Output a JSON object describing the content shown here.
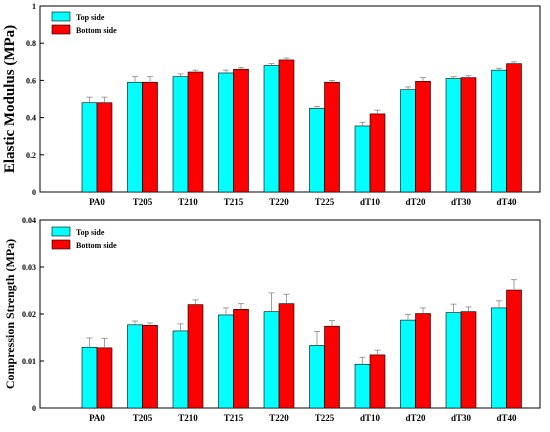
{
  "colors": {
    "top": "#00ffff",
    "bottom": "#ff0000",
    "error": "#888888"
  },
  "chart_data": [
    {
      "type": "bar",
      "ylabel": "Elastic Modulus (MPa)",
      "ylim": [
        0,
        1
      ],
      "yticks": [
        0,
        0.2,
        0.4,
        0.6,
        0.8,
        1
      ],
      "ytick_labels": [
        "0",
        "0.2",
        "0.4",
        "0.6",
        "0.8",
        "1"
      ],
      "categories": [
        "PA0",
        "T205",
        "T210",
        "T215",
        "T220",
        "T225",
        "dT10",
        "dT20",
        "dT30",
        "dT40"
      ],
      "legend_position": "top-left",
      "series": [
        {
          "name": "Top side",
          "values": [
            0.48,
            0.59,
            0.62,
            0.64,
            0.68,
            0.45,
            0.355,
            0.55,
            0.61,
            0.655
          ],
          "errors": [
            0.03,
            0.03,
            0.015,
            0.015,
            0.01,
            0.01,
            0.02,
            0.015,
            0.01,
            0.01
          ]
        },
        {
          "name": "Bottom side",
          "values": [
            0.48,
            0.59,
            0.645,
            0.66,
            0.71,
            0.59,
            0.42,
            0.595,
            0.615,
            0.69
          ],
          "errors": [
            0.03,
            0.03,
            0.01,
            0.01,
            0.01,
            0.01,
            0.02,
            0.02,
            0.01,
            0.01
          ]
        }
      ]
    },
    {
      "type": "bar",
      "ylabel": "Compression Strength (MPa)",
      "ylim": [
        0,
        0.04
      ],
      "yticks": [
        0,
        0.01,
        0.02,
        0.03,
        0.04
      ],
      "ytick_labels": [
        "0",
        "0.01",
        "0.02",
        "0.03",
        "0.04"
      ],
      "categories": [
        "PA0",
        "T205",
        "T210",
        "T215",
        "T220",
        "T225",
        "dT10",
        "dT20",
        "dT30",
        "dT40"
      ],
      "legend_position": "top-left",
      "series": [
        {
          "name": "Top side",
          "values": [
            0.0129,
            0.0177,
            0.0164,
            0.0198,
            0.0205,
            0.0133,
            0.0093,
            0.0187,
            0.0203,
            0.0213
          ],
          "errors": [
            0.002,
            0.0008,
            0.0015,
            0.0015,
            0.004,
            0.003,
            0.0015,
            0.0012,
            0.0018,
            0.0015
          ]
        },
        {
          "name": "Bottom side",
          "values": [
            0.0128,
            0.0176,
            0.022,
            0.021,
            0.0222,
            0.0174,
            0.0113,
            0.0201,
            0.0205,
            0.0251
          ],
          "errors": [
            0.002,
            0.0005,
            0.001,
            0.0012,
            0.002,
            0.0012,
            0.001,
            0.0012,
            0.001,
            0.0022
          ]
        }
      ]
    }
  ]
}
